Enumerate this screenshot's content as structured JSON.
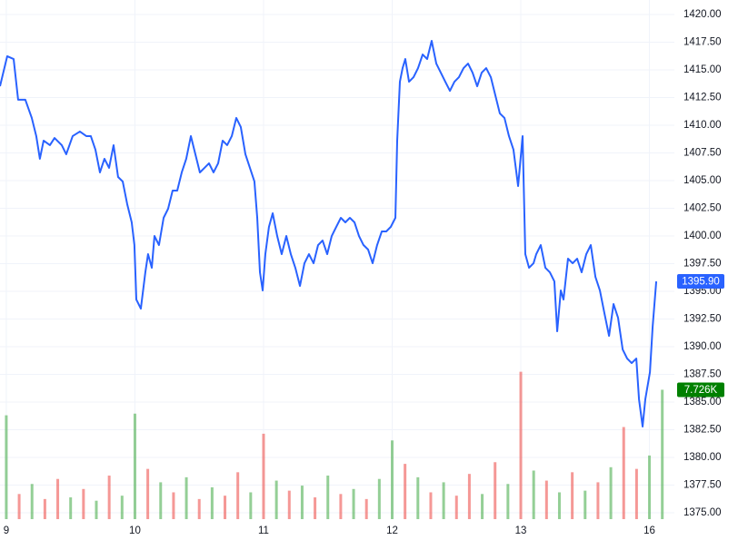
{
  "chart_data": {
    "type": "line",
    "xlim": [
      -0.049,
      5.194
    ],
    "xticks": [
      {
        "value": 0,
        "label": "9"
      },
      {
        "value": 1,
        "label": "10"
      },
      {
        "value": 2,
        "label": "11"
      },
      {
        "value": 3,
        "label": "12"
      },
      {
        "value": 4,
        "label": "13"
      },
      {
        "value": 5,
        "label": "16"
      }
    ],
    "ylim": [
      1374.43,
      1421.31
    ],
    "yticks": [
      {
        "value": 1375,
        "label": "1375.00"
      },
      {
        "value": 1377.5,
        "label": "1377.50"
      },
      {
        "value": 1380,
        "label": "1380.00"
      },
      {
        "value": 1382.5,
        "label": "1382.50"
      },
      {
        "value": 1385,
        "label": "1385.00"
      },
      {
        "value": 1387.5,
        "label": "1387.50"
      },
      {
        "value": 1390,
        "label": "1390.00"
      },
      {
        "value": 1392.5,
        "label": "1392.50"
      },
      {
        "value": 1395,
        "label": "1395.00"
      },
      {
        "value": 1397.5,
        "label": "1397.50"
      },
      {
        "value": 1400,
        "label": "1400.00"
      },
      {
        "value": 1402.5,
        "label": "1402.50"
      },
      {
        "value": 1405,
        "label": "1405.00"
      },
      {
        "value": 1407.5,
        "label": "1407.50"
      },
      {
        "value": 1410,
        "label": "1410.00"
      },
      {
        "value": 1412.5,
        "label": "1412.50"
      },
      {
        "value": 1415,
        "label": "1415.00"
      },
      {
        "value": 1417.5,
        "label": "1417.50"
      },
      {
        "value": 1420,
        "label": "1420.00"
      }
    ],
    "y2lim": [
      0,
      31
    ],
    "grid": true,
    "series": [
      {
        "color": "#2962ff",
        "x": [
          -0.049,
          0.007,
          0.057,
          0.092,
          0.148,
          0.198,
          0.233,
          0.261,
          0.29,
          0.339,
          0.375,
          0.431,
          0.466,
          0.516,
          0.572,
          0.622,
          0.657,
          0.693,
          0.728,
          0.763,
          0.799,
          0.834,
          0.869,
          0.905,
          0.94,
          0.975,
          0.996,
          1.011,
          1.046,
          1.081,
          1.102,
          1.131,
          1.152,
          1.187,
          1.223,
          1.258,
          1.293,
          1.329,
          1.364,
          1.399,
          1.435,
          1.47,
          1.505,
          1.541,
          1.576,
          1.611,
          1.647,
          1.682,
          1.717,
          1.753,
          1.788,
          1.823,
          1.859,
          1.894,
          1.929,
          1.951,
          1.972,
          1.993,
          2.014,
          2.042,
          2.071,
          2.106,
          2.141,
          2.177,
          2.212,
          2.247,
          2.283,
          2.318,
          2.353,
          2.389,
          2.424,
          2.459,
          2.495,
          2.53,
          2.565,
          2.601,
          2.636,
          2.671,
          2.707,
          2.742,
          2.777,
          2.813,
          2.848,
          2.883,
          2.919,
          2.954,
          2.989,
          3.025,
          3.039,
          3.06,
          3.081,
          3.102,
          3.131,
          3.166,
          3.201,
          3.237,
          3.272,
          3.307,
          3.343,
          3.378,
          3.413,
          3.449,
          3.484,
          3.519,
          3.555,
          3.59,
          3.625,
          3.661,
          3.696,
          3.731,
          3.767,
          3.802,
          3.837,
          3.873,
          3.908,
          3.943,
          3.979,
          4.014,
          4.035,
          4.064,
          4.099,
          4.12,
          4.155,
          4.191,
          4.226,
          4.261,
          4.283,
          4.311,
          4.332,
          4.367,
          4.403,
          4.438,
          4.473,
          4.509,
          4.544,
          4.58,
          4.615,
          4.65,
          4.686,
          4.721,
          4.756,
          4.792,
          4.827,
          4.862,
          4.898,
          4.919,
          4.947,
          4.968,
          5.004,
          5.025,
          5.053
        ],
        "values": [
          1413.52,
          1416.23,
          1415.98,
          1412.3,
          1412.3,
          1410.66,
          1409.02,
          1406.97,
          1408.61,
          1408.2,
          1408.85,
          1408.2,
          1407.38,
          1409.02,
          1409.43,
          1409.02,
          1409.02,
          1407.79,
          1405.74,
          1406.97,
          1406.15,
          1408.2,
          1405.33,
          1404.92,
          1402.87,
          1401.23,
          1399.18,
          1394.26,
          1393.44,
          1396.72,
          1398.36,
          1397.13,
          1400.0,
          1399.18,
          1401.64,
          1402.46,
          1404.1,
          1404.1,
          1405.74,
          1406.97,
          1409.02,
          1407.38,
          1405.74,
          1406.15,
          1406.56,
          1405.74,
          1406.56,
          1408.61,
          1408.2,
          1409.02,
          1410.66,
          1409.84,
          1407.38,
          1406.15,
          1404.92,
          1401.64,
          1396.72,
          1395.08,
          1398.36,
          1400.82,
          1402.05,
          1400.0,
          1398.36,
          1400.0,
          1398.36,
          1397.13,
          1395.49,
          1397.54,
          1398.36,
          1397.54,
          1399.18,
          1399.59,
          1398.36,
          1400.0,
          1400.82,
          1401.64,
          1401.23,
          1401.64,
          1401.23,
          1400.0,
          1399.18,
          1398.77,
          1397.54,
          1399.18,
          1400.41,
          1400.41,
          1400.82,
          1401.64,
          1408.61,
          1413.93,
          1415.16,
          1415.98,
          1413.93,
          1414.34,
          1415.16,
          1416.39,
          1415.98,
          1417.62,
          1415.57,
          1414.75,
          1413.93,
          1413.11,
          1413.93,
          1414.34,
          1415.16,
          1415.57,
          1414.75,
          1413.52,
          1414.75,
          1415.16,
          1414.34,
          1412.7,
          1411.07,
          1410.66,
          1409.02,
          1407.79,
          1404.51,
          1409.02,
          1398.36,
          1397.13,
          1397.54,
          1398.36,
          1399.18,
          1397.13,
          1396.72,
          1395.9,
          1391.39,
          1395.08,
          1394.26,
          1397.95,
          1397.54,
          1397.95,
          1396.72,
          1398.36,
          1399.18,
          1396.31,
          1395.08,
          1393.03,
          1390.98,
          1393.85,
          1392.62,
          1389.75,
          1388.93,
          1388.52,
          1388.93,
          1385.25,
          1382.79,
          1385.25,
          1387.7,
          1391.8,
          1395.9
        ]
      }
    ],
    "volume": {
      "axis": "y2",
      "x": [
        0,
        0.1,
        0.2,
        0.3,
        0.4,
        0.5,
        0.6,
        0.7,
        0.8,
        0.9,
        1,
        1.1,
        1.2,
        1.3,
        1.4,
        1.5,
        1.6,
        1.7,
        1.8,
        1.9,
        2,
        2.1,
        2.2,
        2.3,
        2.4,
        2.5,
        2.6,
        2.7,
        2.8,
        2.9,
        3,
        3.1,
        3.2,
        3.3,
        3.4,
        3.5,
        3.6,
        3.7,
        3.8,
        3.9,
        4,
        4.1,
        4.2,
        4.3,
        4.4,
        4.5,
        4.6,
        4.7,
        4.8,
        4.9,
        5,
        5.1
      ],
      "values": [
        6.2,
        1.5,
        2.1,
        1.2,
        2.4,
        1.3,
        1.8,
        1.1,
        2.6,
        1.4,
        6.3,
        3.0,
        2.2,
        1.6,
        2.5,
        1.2,
        1.9,
        1.4,
        2.8,
        1.6,
        5.1,
        2.3,
        1.7,
        2.0,
        1.3,
        2.6,
        1.5,
        1.8,
        1.2,
        2.4,
        4.7,
        3.3,
        2.5,
        1.6,
        2.2,
        1.4,
        2.7,
        1.5,
        3.4,
        2.1,
        8.8,
        2.9,
        2.3,
        1.6,
        2.8,
        1.7,
        2.2,
        3.1,
        5.5,
        3.0,
        3.8,
        7.726
      ],
      "colors": [
        "#4caf50",
        "#ef5350",
        "#4caf50",
        "#ef5350",
        "#ef5350",
        "#4caf50",
        "#ef5350",
        "#4caf50",
        "#ef5350",
        "#4caf50",
        "#4caf50",
        "#ef5350",
        "#4caf50",
        "#ef5350",
        "#4caf50",
        "#ef5350",
        "#4caf50",
        "#ef5350",
        "#ef5350",
        "#4caf50",
        "#ef5350",
        "#4caf50",
        "#ef5350",
        "#4caf50",
        "#ef5350",
        "#4caf50",
        "#ef5350",
        "#4caf50",
        "#ef5350",
        "#4caf50",
        "#4caf50",
        "#ef5350",
        "#4caf50",
        "#ef5350",
        "#4caf50",
        "#ef5350",
        "#ef5350",
        "#4caf50",
        "#ef5350",
        "#4caf50",
        "#ef5350",
        "#4caf50",
        "#ef5350",
        "#4caf50",
        "#ef5350",
        "#4caf50",
        "#ef5350",
        "#4caf50",
        "#ef5350",
        "#ef5350",
        "#4caf50",
        "#4caf50"
      ]
    },
    "last_price": {
      "value": 1395.9,
      "label": "1395.90",
      "color": "#2962ff"
    },
    "last_volume": {
      "value": 7.726,
      "label": "7.726K",
      "color": "#008000"
    }
  }
}
